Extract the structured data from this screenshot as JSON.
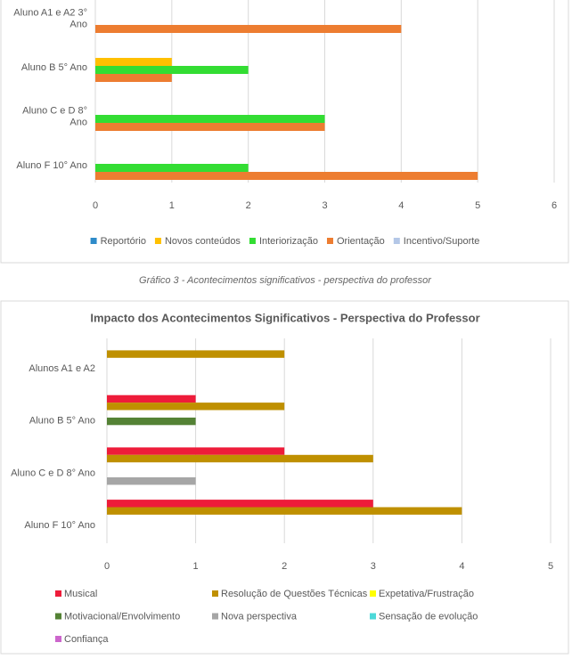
{
  "caption": "Gráfico 3 - Acontecimentos significativos - perspectiva do professor",
  "chart_data": [
    {
      "type": "barh",
      "categories": [
        "Aluno A1 e A2 3° Ano",
        "Aluno B 5° Ano",
        "Aluno C e D 8° Ano",
        "Aluno F 10° Ano"
      ],
      "series": [
        {
          "name": "Reportório",
          "color": "#2e8bc9",
          "values": [
            0,
            0,
            0,
            0
          ]
        },
        {
          "name": "Novos conteúdos",
          "color": "#ffc000",
          "values": [
            0,
            1,
            0,
            0
          ]
        },
        {
          "name": "Interiorização",
          "color": "#33dd33",
          "values": [
            0,
            2,
            3,
            2
          ]
        },
        {
          "name": "Orientação",
          "color": "#ed7d31",
          "values": [
            4,
            1,
            3,
            5
          ]
        },
        {
          "name": "Incentivo/Suporte",
          "color": "#b4c7e7",
          "values": [
            0,
            0,
            0,
            0
          ]
        }
      ],
      "xlim": [
        0,
        6
      ],
      "xticks": [
        0,
        1,
        2,
        3,
        4,
        5,
        6
      ],
      "grid": true,
      "legend": "bottom"
    },
    {
      "type": "barh",
      "title": "Impacto dos Acontecimentos Significativos - Perspectiva do Professor",
      "categories": [
        "Alunos A1 e A2",
        "Aluno B 5° Ano",
        "Aluno C e D 8° Ano",
        "Aluno F 10° Ano"
      ],
      "series": [
        {
          "name": "Musical",
          "color": "#ee1c3a",
          "values": [
            0,
            1,
            2,
            3
          ]
        },
        {
          "name": "Resolução de Questões Técnicas",
          "color": "#bf9000",
          "values": [
            2,
            2,
            3,
            4
          ]
        },
        {
          "name": "Expetativa/Frustração",
          "color": "#ffff00",
          "values": [
            0,
            0,
            0,
            0
          ]
        },
        {
          "name": "Motivacional/Envolvimento",
          "color": "#548235",
          "values": [
            0,
            1,
            0,
            0
          ]
        },
        {
          "name": "Nova perspectiva",
          "color": "#a6a6a6",
          "values": [
            0,
            0,
            1,
            0
          ]
        },
        {
          "name": "Sensação de evolução",
          "color": "#4dd9d9",
          "values": [
            0,
            0,
            0,
            0
          ]
        },
        {
          "name": "Confiança",
          "color": "#cc66cc",
          "values": [
            0,
            0,
            0,
            0
          ]
        }
      ],
      "xlim": [
        0,
        5
      ],
      "xticks": [
        0,
        1,
        2,
        3,
        4,
        5
      ],
      "grid": true,
      "legend": "bottom"
    }
  ]
}
